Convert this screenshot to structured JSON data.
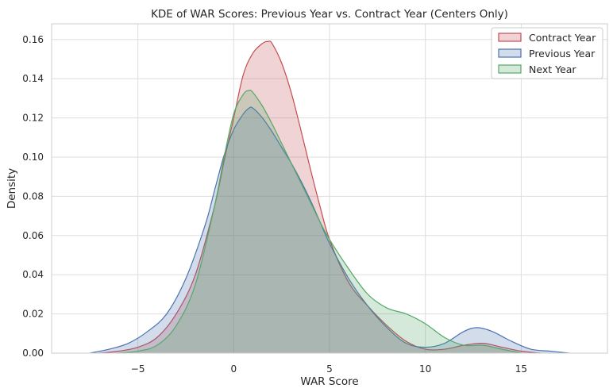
{
  "chart_data": {
    "type": "area",
    "title": "KDE of WAR Scores: Previous Year vs. Contract Year (Centers Only)",
    "xlabel": "WAR Score",
    "ylabel": "Density",
    "xlim": [
      -9.5,
      19.5
    ],
    "ylim": [
      0,
      0.168
    ],
    "x_ticks": [
      -5,
      0,
      5,
      10,
      15
    ],
    "x_tick_labels": [
      "−5",
      "0",
      "5",
      "10",
      "15"
    ],
    "y_ticks": [
      0.0,
      0.02,
      0.04,
      0.06,
      0.08,
      0.1,
      0.12,
      0.14,
      0.16
    ],
    "y_tick_labels": [
      "0.00",
      "0.02",
      "0.04",
      "0.06",
      "0.08",
      "0.10",
      "0.12",
      "0.14",
      "0.16"
    ],
    "grid": true,
    "legend_position": "top-right",
    "series": [
      {
        "name": "Contract Year",
        "color": "#c44e52",
        "fill_opacity": 0.25,
        "x": [
          -7,
          -6,
          -5,
          -4,
          -3,
          -2,
          -1,
          -0.5,
          0,
          0.5,
          1,
          1.5,
          1.8,
          2,
          2.5,
          3,
          3.5,
          4,
          4.5,
          5,
          6,
          7,
          8,
          9,
          10,
          11,
          12,
          13,
          14,
          15,
          16
        ],
        "y": [
          0.0,
          0.001,
          0.003,
          0.008,
          0.02,
          0.04,
          0.075,
          0.098,
          0.12,
          0.142,
          0.153,
          0.158,
          0.159,
          0.158,
          0.148,
          0.133,
          0.114,
          0.094,
          0.075,
          0.058,
          0.036,
          0.024,
          0.014,
          0.006,
          0.002,
          0.002,
          0.004,
          0.005,
          0.003,
          0.001,
          0.0
        ]
      },
      {
        "name": "Previous Year",
        "color": "#4c72b0",
        "fill_opacity": 0.25,
        "x": [
          -7.5,
          -6.5,
          -5.5,
          -4.5,
          -3.5,
          -2.5,
          -1.5,
          -1,
          -0.5,
          0,
          0.5,
          0.8,
          1,
          1.5,
          2,
          2.5,
          3,
          3.5,
          4,
          4.5,
          5,
          6,
          7,
          8,
          9,
          10,
          11,
          12,
          12.7,
          13.5,
          14.5,
          15.5,
          16.5,
          17.5
        ],
        "y": [
          0.0,
          0.002,
          0.005,
          0.011,
          0.02,
          0.038,
          0.065,
          0.083,
          0.101,
          0.114,
          0.122,
          0.125,
          0.125,
          0.12,
          0.113,
          0.105,
          0.097,
          0.088,
          0.078,
          0.067,
          0.056,
          0.038,
          0.024,
          0.013,
          0.005,
          0.003,
          0.005,
          0.011,
          0.013,
          0.011,
          0.006,
          0.002,
          0.001,
          0.0
        ]
      },
      {
        "name": "Next Year",
        "color": "#55a868",
        "fill_opacity": 0.25,
        "x": [
          -6,
          -5,
          -4,
          -3,
          -2,
          -1,
          -0.5,
          0,
          0.5,
          0.8,
          1,
          1.5,
          2,
          2.5,
          3,
          3.5,
          4,
          4.5,
          5,
          6,
          7,
          8,
          9,
          10,
          11,
          12,
          13,
          14,
          15
        ],
        "y": [
          0.0,
          0.001,
          0.004,
          0.014,
          0.035,
          0.075,
          0.1,
          0.122,
          0.132,
          0.134,
          0.133,
          0.126,
          0.117,
          0.107,
          0.097,
          0.087,
          0.077,
          0.067,
          0.058,
          0.043,
          0.03,
          0.023,
          0.02,
          0.015,
          0.008,
          0.004,
          0.004,
          0.002,
          0.0
        ]
      }
    ]
  }
}
